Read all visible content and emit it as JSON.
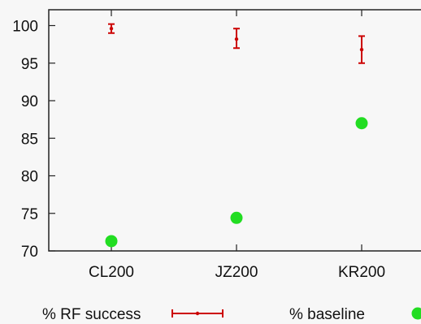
{
  "chart_data": {
    "type": "scatter",
    "title": "",
    "xlabel": "",
    "ylabel": "",
    "categories": [
      "CL200",
      "JZ200",
      "KR200"
    ],
    "ylim": [
      70,
      102
    ],
    "yticks": [
      70,
      75,
      80,
      85,
      90,
      95,
      100
    ],
    "grid": false,
    "legend_position": "bottom",
    "series": [
      {
        "name": "% RF success",
        "marker": "errorbar",
        "color": "#cc0000",
        "values": [
          99.6,
          98.2,
          96.8
        ],
        "error_low": [
          99.0,
          97.0,
          95.0
        ],
        "error_high": [
          100.2,
          99.6,
          98.6
        ]
      },
      {
        "name": "% baseline",
        "marker": "circle",
        "color": "#22dd22",
        "values": [
          71.3,
          74.4,
          87.0
        ]
      }
    ]
  }
}
